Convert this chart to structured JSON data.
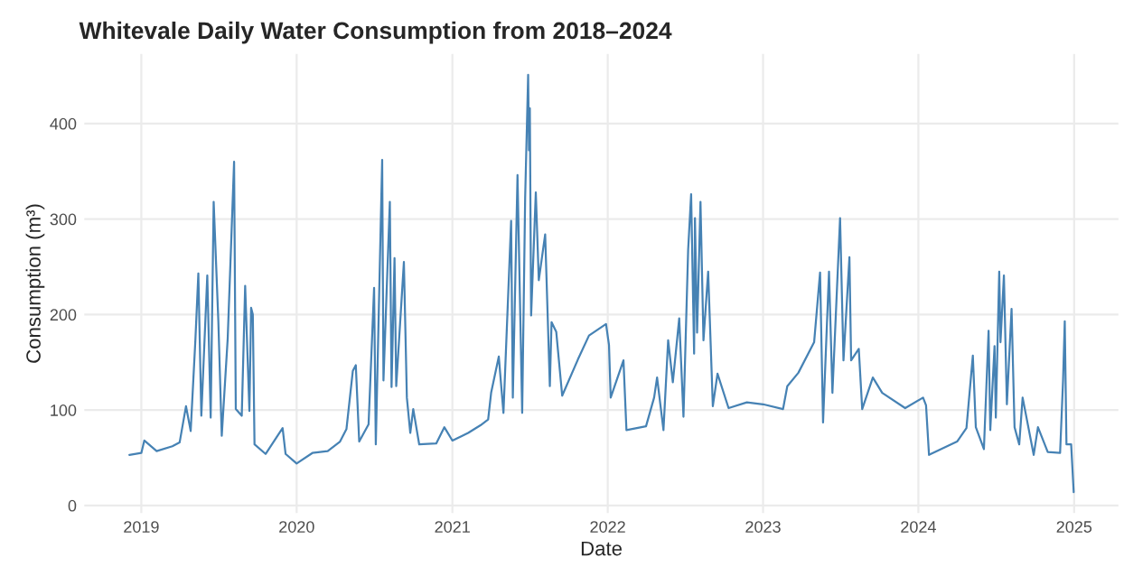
{
  "chart_data": {
    "type": "line",
    "title": "Whitevale Daily Water Consumption from 2018–2024",
    "xlabel": "Date",
    "ylabel": "Consumption (m³)",
    "x": [
      "2018-12-04",
      "2019-01-01",
      "2019-01-08",
      "2019-02-06",
      "2019-03-15",
      "2019-04-01",
      "2019-04-16",
      "2019-04-27",
      "2019-05-08",
      "2019-05-15",
      "2019-05-22",
      "2019-06-05",
      "2019-06-13",
      "2019-06-20",
      "2019-07-01",
      "2019-07-09",
      "2019-07-23",
      "2019-08-07",
      "2019-08-11",
      "2019-08-25",
      "2019-09-02",
      "2019-09-12",
      "2019-09-16",
      "2019-09-20",
      "2019-09-24",
      "2019-10-20",
      "2019-11-29",
      "2019-12-06",
      "2020-01-01",
      "2020-02-07",
      "2020-03-14",
      "2020-04-12",
      "2020-04-27",
      "2020-05-12",
      "2020-05-19",
      "2020-05-27",
      "2020-06-18",
      "2020-07-01",
      "2020-07-05",
      "2020-07-20",
      "2020-07-23",
      "2020-08-07",
      "2020-08-11",
      "2020-08-18",
      "2020-08-22",
      "2020-09-09",
      "2020-09-16",
      "2020-09-24",
      "2020-10-01",
      "2020-10-15",
      "2020-11-24",
      "2020-12-13",
      "2021-01-01",
      "2021-02-07",
      "2021-03-08",
      "2021-03-26",
      "2021-04-02",
      "2021-04-20",
      "2021-05-01",
      "2021-05-19",
      "2021-05-23",
      "2021-06-03",
      "2021-06-14",
      "2021-06-21",
      "2021-06-28",
      "2021-06-30",
      "2021-07-02",
      "2021-07-05",
      "2021-07-16",
      "2021-07-23",
      "2021-08-07",
      "2021-08-18",
      "2021-08-22",
      "2021-09-02",
      "2021-09-16",
      "2021-10-23",
      "2021-11-18",
      "2021-12-28",
      "2022-01-04",
      "2022-01-08",
      "2022-02-07",
      "2022-02-14",
      "2022-04-01",
      "2022-04-20",
      "2022-04-27",
      "2022-05-12",
      "2022-05-23",
      "2022-06-03",
      "2022-06-18",
      "2022-06-28",
      "2022-07-09",
      "2022-07-16",
      "2022-07-23",
      "2022-07-25",
      "2022-07-30",
      "2022-08-07",
      "2022-08-14",
      "2022-08-25",
      "2022-09-05",
      "2022-09-16",
      "2022-10-12",
      "2022-11-24",
      "2023-01-01",
      "2023-02-17",
      "2023-02-27",
      "2023-03-25",
      "2023-05-01",
      "2023-05-15",
      "2023-05-22",
      "2023-06-05",
      "2023-06-13",
      "2023-07-01",
      "2023-07-09",
      "2023-07-23",
      "2023-07-27",
      "2023-08-14",
      "2023-08-22",
      "2023-09-16",
      "2023-10-08",
      "2023-12-01",
      "2024-01-12",
      "2024-01-19",
      "2024-01-26",
      "2024-04-01",
      "2024-04-23",
      "2024-05-08",
      "2024-05-15",
      "2024-06-03",
      "2024-06-14",
      "2024-06-18",
      "2024-06-28",
      "2024-07-01",
      "2024-07-09",
      "2024-07-12",
      "2024-07-20",
      "2024-07-27",
      "2024-08-07",
      "2024-08-14",
      "2024-08-25",
      "2024-09-02",
      "2024-09-28",
      "2024-10-08",
      "2024-10-31",
      "2024-11-29",
      "2024-12-06",
      "2024-12-10",
      "2024-12-14",
      "2024-12-25",
      "2024-12-31"
    ],
    "series": [
      {
        "color": "#4682b4",
        "values": [
          53,
          55,
          68,
          57,
          62,
          66,
          104,
          78,
          173,
          243,
          94,
          241,
          92,
          318,
          193,
          73,
          175,
          360,
          101,
          94,
          230,
          99,
          207,
          200,
          64,
          54,
          81,
          54,
          44,
          55,
          57,
          67,
          80,
          141,
          147,
          67,
          85,
          228,
          64,
          362,
          131,
          318,
          124,
          259,
          125,
          255,
          113,
          76,
          101,
          64,
          65,
          82,
          68,
          76,
          84,
          90,
          118,
          156,
          97,
          298,
          113,
          346,
          97,
          323,
          451,
          372,
          416,
          199,
          328,
          236,
          284,
          125,
          192,
          182,
          115,
          153,
          178,
          190,
          168,
          113,
          152,
          79,
          83,
          113,
          134,
          79,
          173,
          129,
          196,
          93,
          268,
          326,
          159,
          301,
          181,
          318,
          173,
          245,
          104,
          138,
          102,
          108,
          106,
          101,
          125,
          139,
          171,
          244,
          87,
          245,
          118,
          301,
          152,
          260,
          152,
          164,
          101,
          134,
          118,
          102,
          113,
          105,
          53,
          67,
          81,
          157,
          82,
          59,
          183,
          79,
          167,
          92,
          245,
          171,
          241,
          106,
          206,
          82,
          64,
          113,
          53,
          82,
          56,
          55,
          131,
          193,
          64,
          64,
          14
        ]
      }
    ],
    "xlim": [
      "2018-08-20",
      "2025-04-15"
    ],
    "xticks": [
      "2019",
      "2020",
      "2021",
      "2022",
      "2023",
      "2024",
      "2025"
    ],
    "ylim": [
      -8,
      473
    ],
    "yticks": [
      0,
      100,
      200,
      300,
      400
    ],
    "grid": true,
    "line_style": "solid",
    "marker": "none"
  }
}
